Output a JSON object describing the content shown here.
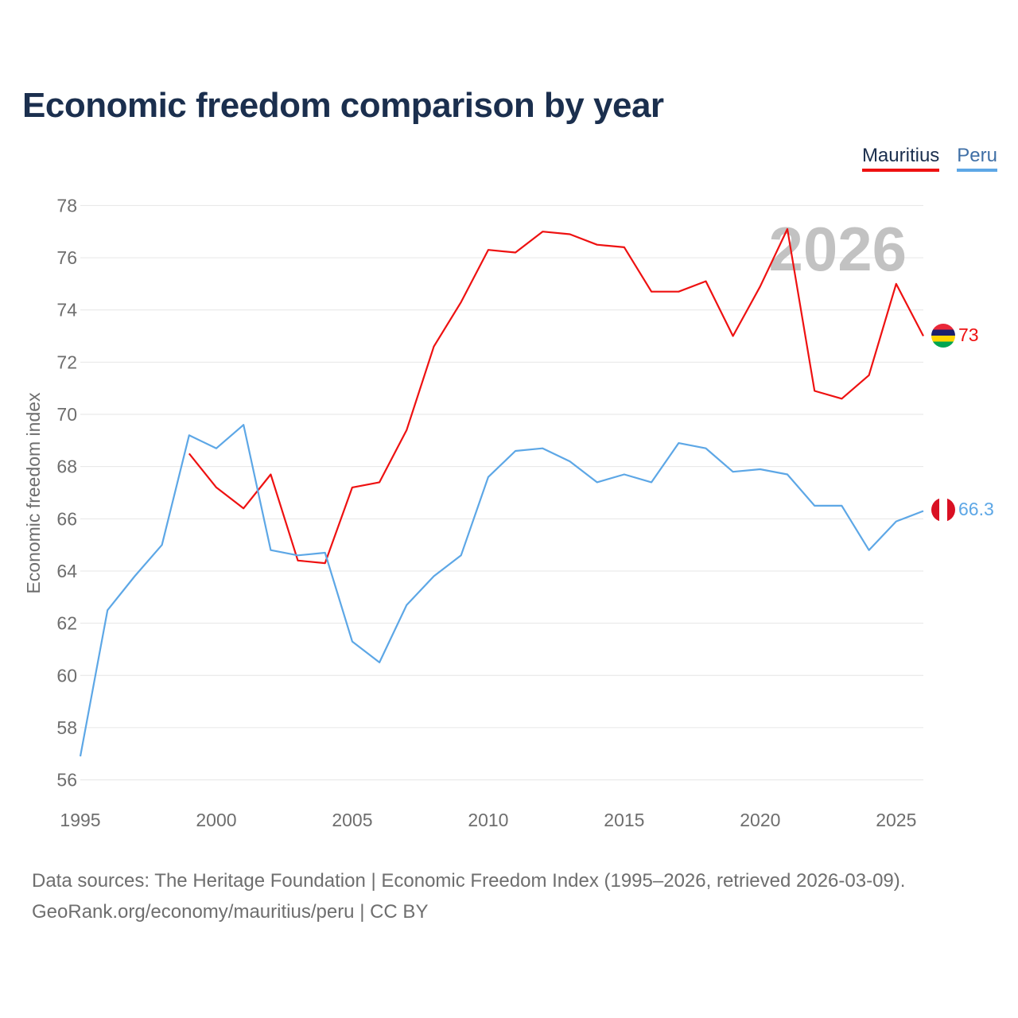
{
  "header": {
    "title": "Economic freedom comparison by year"
  },
  "legend": [
    {
      "label": "Mauritius",
      "color": "#ee1111"
    },
    {
      "label": "Peru",
      "color": "#5da7e6"
    }
  ],
  "year_watermark": "2026",
  "footer": {
    "line1": "Data sources: The Heritage Foundation | Economic Freedom Index (1995–2026, retrieved 2026-03-09).",
    "line2": "GeoRank.org/economy/mauritius/peru | CC BY"
  },
  "chart_data": {
    "type": "line",
    "title": "Economic freedom comparison by year",
    "xlabel": "",
    "ylabel": "Economic freedom index",
    "xlim": [
      1995,
      2026
    ],
    "ylim": [
      55.5,
      78.5
    ],
    "x_ticks": [
      1995,
      2000,
      2005,
      2010,
      2015,
      2020,
      2025
    ],
    "y_ticks": [
      56,
      58,
      60,
      62,
      64,
      66,
      68,
      70,
      72,
      74,
      76,
      78
    ],
    "grid": true,
    "legend_position": "top-right",
    "series": [
      {
        "name": "Mauritius",
        "color": "#ee1111",
        "end_label": "73",
        "x": [
          1999,
          2000,
          2001,
          2002,
          2003,
          2004,
          2005,
          2006,
          2007,
          2008,
          2009,
          2010,
          2011,
          2012,
          2013,
          2014,
          2015,
          2016,
          2017,
          2018,
          2019,
          2020,
          2021,
          2022,
          2023,
          2024,
          2025,
          2026
        ],
        "values": [
          68.5,
          67.2,
          66.4,
          67.7,
          64.4,
          64.3,
          67.2,
          67.4,
          69.4,
          72.6,
          74.3,
          76.3,
          76.2,
          77.0,
          76.9,
          76.5,
          76.4,
          74.7,
          74.7,
          75.1,
          73.0,
          74.9,
          77.1,
          70.9,
          70.6,
          71.5,
          75.0,
          73.0
        ]
      },
      {
        "name": "Peru",
        "color": "#5da7e6",
        "end_label": "66.3",
        "x": [
          1995,
          1996,
          1997,
          1998,
          1999,
          2000,
          2001,
          2002,
          2003,
          2004,
          2005,
          2006,
          2007,
          2008,
          2009,
          2010,
          2011,
          2012,
          2013,
          2014,
          2015,
          2016,
          2017,
          2018,
          2019,
          2020,
          2021,
          2022,
          2023,
          2024,
          2025,
          2026
        ],
        "values": [
          56.9,
          62.5,
          63.8,
          65.0,
          69.2,
          68.7,
          69.6,
          64.8,
          64.6,
          64.7,
          61.3,
          60.5,
          62.7,
          63.8,
          64.6,
          67.6,
          68.6,
          68.7,
          68.2,
          67.4,
          67.7,
          67.4,
          68.9,
          68.7,
          67.8,
          67.9,
          67.7,
          66.5,
          66.5,
          64.8,
          65.9,
          66.3
        ]
      }
    ]
  }
}
